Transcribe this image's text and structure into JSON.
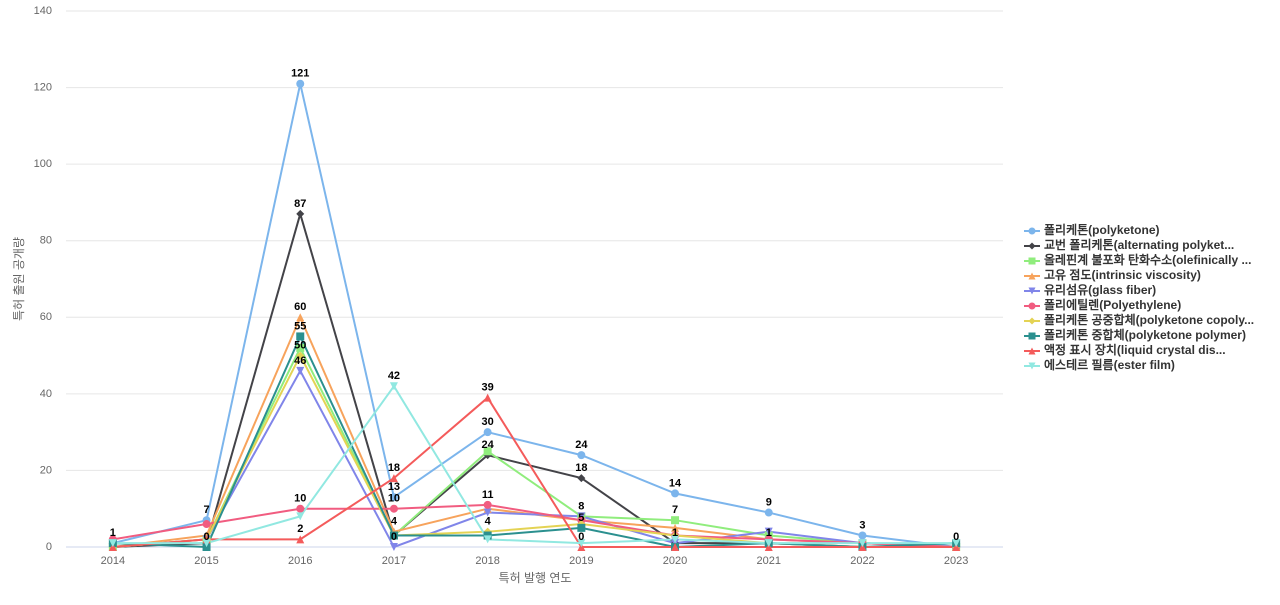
{
  "chart_data": {
    "type": "line",
    "y_axis_label": "특허 출원 공개량",
    "x_axis_label": "특허 발행 연도",
    "categories": [
      "2014",
      "2015",
      "2016",
      "2017",
      "2018",
      "2019",
      "2020",
      "2021",
      "2022",
      "2023"
    ],
    "ylim": [
      0,
      140
    ],
    "yticks": [
      0,
      20,
      40,
      60,
      80,
      100,
      120,
      140
    ],
    "grid": true,
    "legend": "right",
    "series": [
      {
        "name": "폴리케톤(polyketone)",
        "color": "#7cb5ec",
        "marker": "circle",
        "values": [
          1,
          7,
          121,
          13,
          30,
          24,
          14,
          9,
          3,
          0
        ],
        "value_labels": [
          "1",
          "7",
          "121",
          "13",
          "30",
          "24",
          "14",
          "9",
          "3",
          "0"
        ]
      },
      {
        "name": "교번 폴리케톤(alternating polyket...",
        "color": "#434348",
        "marker": "diamond",
        "values": [
          0,
          1,
          87,
          3,
          24,
          18,
          1,
          1,
          0,
          0
        ],
        "value_labels": [
          null,
          null,
          "87",
          null,
          "24",
          "18",
          "1",
          "1",
          null,
          null
        ]
      },
      {
        "name": "올레핀계 불포화 탄화수소(olefinically ...",
        "color": "#90ed7d",
        "marker": "square",
        "values": [
          0,
          2,
          52,
          3,
          25,
          8,
          7,
          3,
          1,
          0
        ],
        "value_labels": [
          null,
          null,
          null,
          null,
          null,
          "8",
          "7",
          null,
          null,
          null
        ]
      },
      {
        "name": "고유 점도(intrinsic viscosity)",
        "color": "#f7a35c",
        "marker": "triangle",
        "values": [
          0,
          3,
          60,
          4,
          10,
          7,
          5,
          2,
          1,
          0
        ],
        "value_labels": [
          null,
          null,
          "60",
          "4",
          null,
          null,
          null,
          null,
          null,
          null
        ]
      },
      {
        "name": "유리섬유(glass fiber)",
        "color": "#8085e9",
        "marker": "triangle-down",
        "values": [
          0,
          2,
          46,
          0,
          9,
          8,
          1,
          4,
          1,
          0
        ],
        "value_labels": [
          null,
          null,
          "46",
          "0",
          null,
          null,
          null,
          null,
          null,
          null
        ]
      },
      {
        "name": "폴리에틸렌(Polyethylene)",
        "color": "#f15c80",
        "marker": "circle",
        "values": [
          2,
          6,
          10,
          10,
          11,
          7,
          3,
          2,
          1,
          0
        ],
        "value_labels": [
          null,
          null,
          "10",
          "10",
          "11",
          null,
          null,
          null,
          null,
          null
        ]
      },
      {
        "name": "폴리케톤 공중합체(polyketone copoly...",
        "color": "#e4d354",
        "marker": "diamond",
        "values": [
          0,
          2,
          50,
          3,
          4,
          6,
          3,
          1,
          0,
          0
        ],
        "value_labels": [
          null,
          null,
          "50",
          null,
          "4",
          null,
          null,
          null,
          null,
          null
        ]
      },
      {
        "name": "폴리케톤 중합체(polyketone polymer)",
        "color": "#2b908f",
        "marker": "square",
        "values": [
          1,
          0,
          55,
          3,
          3,
          5,
          0,
          1,
          0,
          1
        ],
        "value_labels": [
          null,
          "0",
          "55",
          null,
          null,
          "5",
          null,
          null,
          null,
          null
        ]
      },
      {
        "name": "액정 표시 장치(liquid crystal dis...",
        "color": "#f45b5b",
        "marker": "triangle",
        "values": [
          0,
          2,
          2,
          18,
          39,
          0,
          0,
          0,
          0,
          0
        ],
        "value_labels": [
          null,
          null,
          "2",
          "18",
          "39",
          "0",
          null,
          null,
          null,
          null
        ]
      },
      {
        "name": "에스테르 필름(ester film)",
        "color": "#91e8e1",
        "marker": "triangle-down",
        "values": [
          1,
          1,
          8,
          42,
          2,
          1,
          2,
          1,
          1,
          1
        ],
        "value_labels": [
          null,
          null,
          null,
          "42",
          null,
          null,
          null,
          null,
          null,
          null
        ]
      }
    ]
  }
}
